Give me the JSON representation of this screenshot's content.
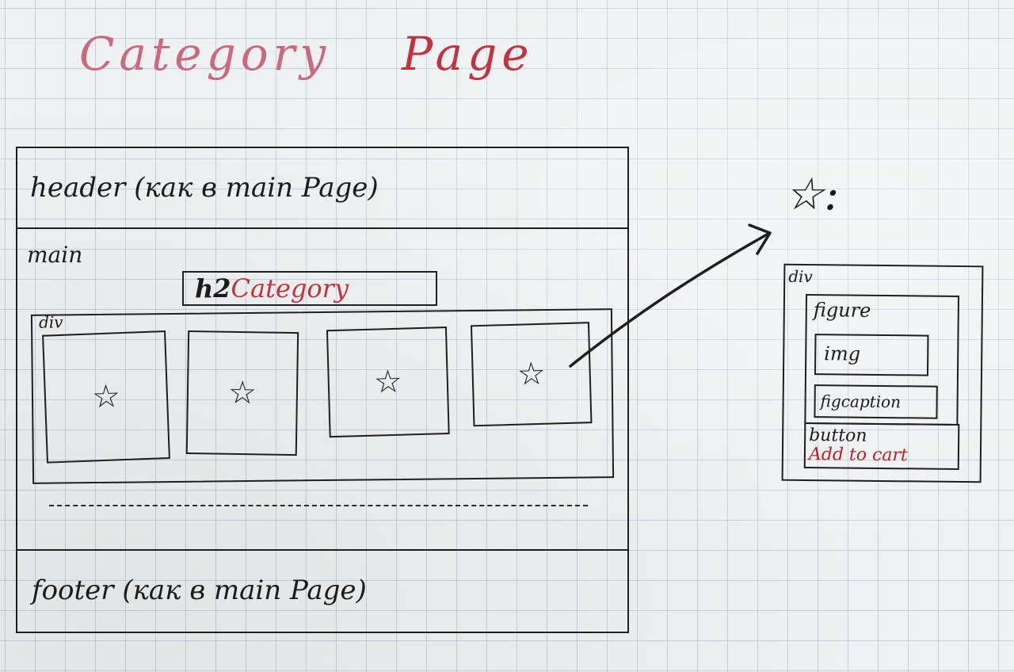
{
  "title": {
    "word1": "Category",
    "word2": "Page"
  },
  "wireframe": {
    "header_label": "header (как в main Page)",
    "main_label": "main",
    "h2_tag": "h2",
    "h2_text": "Category",
    "div_label": "div",
    "card_icon": "star-icon",
    "cards": [
      {
        "icon": "☆"
      },
      {
        "icon": "☆"
      },
      {
        "icon": "☆"
      },
      {
        "icon": "☆"
      }
    ],
    "footer_label": "footer (как в main Page)"
  },
  "detail": {
    "heading": "☆:",
    "div_label": "div",
    "figure_label": "figure",
    "img_label": "img",
    "figcaption_label": "figcaption",
    "button_label": "button",
    "button_text": "Add to cart"
  },
  "colors": {
    "ink": "#1f1f1f",
    "red_ink": "#b3222c",
    "pink_ink": "#c96a7e",
    "grid": "#7896be"
  }
}
